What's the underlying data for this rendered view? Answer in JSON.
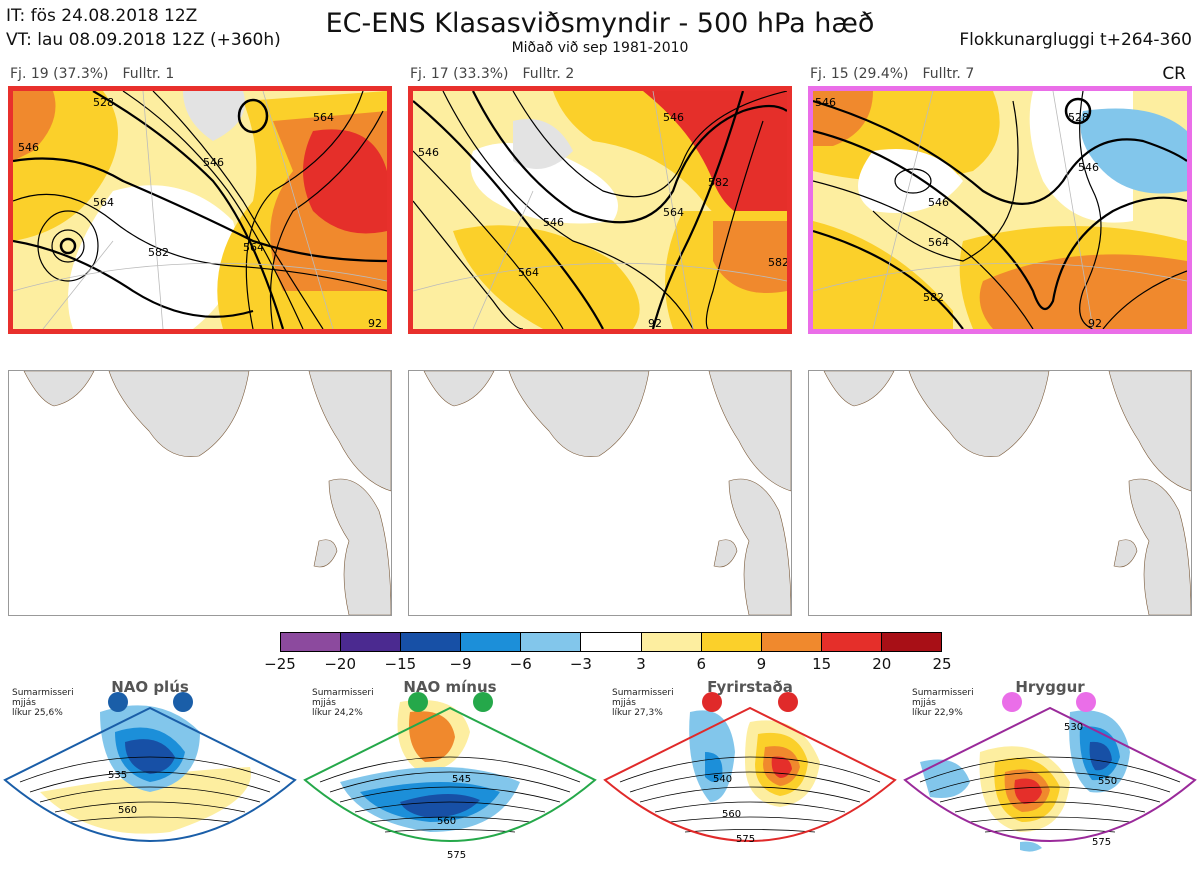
{
  "header": {
    "it_line": "IT: fös 24.08.2018 12Z",
    "vt_line": "VT: lau 08.09.2018 12Z  (+360h)",
    "title": "EC-ENS Klasasviðsmyndir - 500 hPa hæð",
    "subtitle": "Miðað við sep 1981-2010",
    "window": "Flokkunargluggi t+264-360",
    "cr": "CR"
  },
  "clusters": [
    {
      "count_label": "Fj. 19 (37.3%)",
      "member_label": "Fulltr. 1",
      "border_color": "#e8302c",
      "contour_labels": [
        "528",
        "546",
        "564",
        "564",
        "582",
        "564",
        "546",
        "92"
      ]
    },
    {
      "count_label": "Fj. 17 (33.3%)",
      "member_label": "Fulltr. 2",
      "border_color": "#e8302c",
      "contour_labels": [
        "546",
        "546",
        "564",
        "546",
        "582",
        "564",
        "582",
        "92"
      ]
    },
    {
      "count_label": "Fj. 15 (29.4%)",
      "member_label": "Fulltr. 7",
      "border_color": "#ea6ee8",
      "contour_labels": [
        "528",
        "546",
        "546",
        "546",
        "564",
        "582",
        "92"
      ]
    }
  ],
  "colorbar": {
    "colors": [
      "#8c4a9e",
      "#4b2a90",
      "#1750a6",
      "#1c8fd9",
      "#82c6eb",
      "#ffffff",
      "#fdeea0",
      "#fbd02a",
      "#f0892d",
      "#e52f2a",
      "#a80f16"
    ],
    "ticks": [
      "−25",
      "−20",
      "−15",
      "−9",
      "−6",
      "−3",
      "3",
      "6",
      "9",
      "15",
      "20",
      "25"
    ]
  },
  "regimes": [
    {
      "name": "NAO plús",
      "text": "Sumarmisseri\nmjjás\nlíkur 25,6%",
      "color": "#1a5ea8",
      "labels": [
        "535",
        "560"
      ]
    },
    {
      "name": "NAO mínus",
      "text": "Sumarmisseri\nmjjás\nlíkur 24,2%",
      "color": "#25a84a",
      "labels": [
        "545",
        "560",
        "575"
      ]
    },
    {
      "name": "Fyrirstaða",
      "text": "Sumarmisseri\nmjjás\nlíkur 27,3%",
      "color": "#e02a2a",
      "labels": [
        "540",
        "560",
        "575"
      ]
    },
    {
      "name": "Hryggur",
      "text": "Sumarmisseri\nmjjás\nlíkur 22,9%",
      "color": "#9a2a9a",
      "labels": [
        "530",
        "550",
        "575"
      ]
    }
  ]
}
